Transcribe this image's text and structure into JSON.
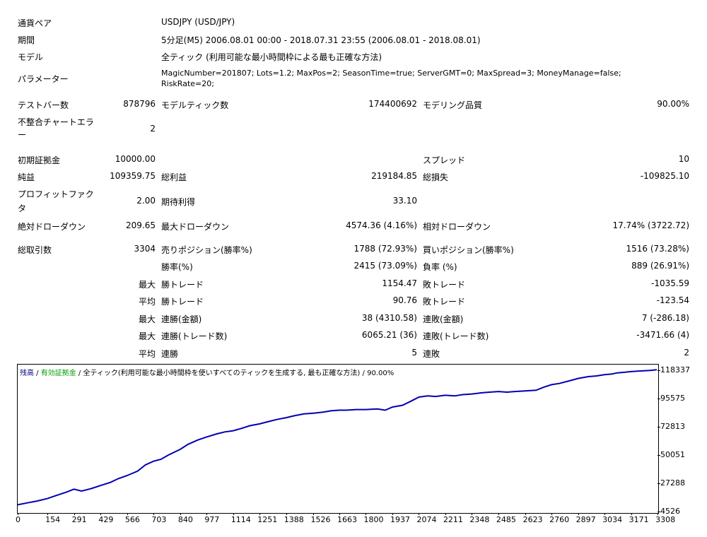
{
  "report": {
    "rows": [
      {
        "label": "通貨ペア",
        "value": "USDJPY (USD/JPY)"
      },
      {
        "label": "期間",
        "value": "5分足(M5) 2006.08.01 00:00 - 2018.07.31 23:55 (2006.08.01 - 2018.08.01)"
      },
      {
        "label": "モデル",
        "value": "全ティック (利用可能な最小時間枠による最も正確な方法)"
      },
      {
        "label": "パラメーター",
        "value_line1": "MagicNumber=201807; Lots=1.2; MaxPos=2; SeasonTime=true; ServerGMT=0; MaxSpread=3; MoneyManage=false;",
        "value_line2": "RiskRate=20;"
      }
    ],
    "bars": {
      "label": "テストバー数",
      "value": "878796"
    },
    "ticks": {
      "label": "モデルティック数",
      "value": "174400692"
    },
    "quality": {
      "label": "モデリング品質",
      "value": "90.00%"
    },
    "mismatch": {
      "label_line1": "不整合チャートエラ",
      "label_line2": "ー",
      "value": "2"
    },
    "deposit": {
      "label": "初期証拠金",
      "value": "10000.00"
    },
    "spread": {
      "label": "スプレッド",
      "value": "10"
    },
    "net_profit": {
      "label": "純益",
      "value": "109359.75"
    },
    "gross_profit": {
      "label": "総利益",
      "value": "219184.85"
    },
    "gross_loss": {
      "label": "総損失",
      "value": "-109825.10"
    },
    "profit_factor": {
      "label_line1": "プロフィットファク",
      "label_line2": "タ",
      "value": "2.00"
    },
    "expected_payoff": {
      "label": "期待利得",
      "value": "33.10"
    },
    "abs_dd": {
      "label": "絶対ドローダウン",
      "value": "209.65"
    },
    "max_dd": {
      "label": "最大ドローダウン",
      "value": "4574.36 (4.16%)"
    },
    "rel_dd": {
      "label": "相対ドローダウン",
      "value": "17.74% (3722.72)"
    },
    "total_trades": {
      "label": "総取引数",
      "value": "3304"
    },
    "short": {
      "label": "売りポジション(勝率%)",
      "value": "1788 (72.93%)"
    },
    "long": {
      "label": "買いポジション(勝率%)",
      "value": "1516 (73.28%)"
    },
    "win_rate": {
      "label": "勝率(%)",
      "value": "2415 (73.09%)"
    },
    "loss_rate": {
      "label": "負率 (%)",
      "value": "889 (26.91%)"
    },
    "max_win": {
      "prefix": "最大",
      "label": "勝トレード",
      "value": "1154.47"
    },
    "max_loss": {
      "label": "敗トレード",
      "value": "-1035.59"
    },
    "avg_win": {
      "prefix": "平均",
      "label": "勝トレード",
      "value": "90.76"
    },
    "avg_loss": {
      "label": "敗トレード",
      "value": "-123.54"
    },
    "max_cons_wins_amt": {
      "prefix": "最大",
      "label": "連勝(金額)",
      "value": "38 (4310.58)"
    },
    "max_cons_loss_amt": {
      "label": "連敗(金額)",
      "value": "7 (-286.18)"
    },
    "max_cons_wins_cnt": {
      "prefix": "最大",
      "label": "連勝(トレード数)",
      "value": "6065.21 (36)"
    },
    "max_cons_loss_cnt": {
      "label": "連敗(トレード数)",
      "value": "-3471.66 (4)"
    },
    "avg_cons_wins": {
      "prefix": "平均",
      "label": "連勝",
      "value": "5"
    },
    "avg_cons_loss": {
      "label": "連敗",
      "value": "2"
    }
  },
  "chart_data": {
    "type": "line",
    "header": {
      "series1": "残高",
      "sep1": " / ",
      "series2": "有効証拠金",
      "sep2": " / ",
      "model": "全ティック(利用可能な最小時間枠を使いすべてのティックを生成する, 最も正確な方法)",
      "sep3": " / ",
      "quality": "90.00%"
    },
    "colors": {
      "balance": "#0000b4",
      "equity": "#00a000",
      "header": "#000080",
      "grid": "#c0c0c0"
    },
    "xlim": [
      0,
      3304
    ],
    "ylim": [
      4526,
      121500
    ],
    "x_ticks": [
      0,
      154,
      291,
      429,
      566,
      703,
      840,
      977,
      1114,
      1251,
      1388,
      1526,
      1663,
      1800,
      1937,
      2074,
      2211,
      2348,
      2485,
      2623,
      2760,
      2897,
      3034,
      3171,
      3308
    ],
    "y_ticks": [
      4526,
      27288,
      50051,
      72813,
      95575,
      118337
    ],
    "series": [
      {
        "name": "残高",
        "x": [
          0,
          50,
          100,
          154,
          200,
          250,
          291,
          330,
          380,
          429,
          480,
          520,
          566,
          620,
          660,
          703,
          740,
          780,
          840,
          880,
          930,
          977,
          1030,
          1070,
          1114,
          1160,
          1200,
          1251,
          1300,
          1340,
          1388,
          1430,
          1480,
          1526,
          1580,
          1620,
          1663,
          1700,
          1750,
          1800,
          1860,
          1900,
          1937,
          1990,
          2030,
          2074,
          2120,
          2160,
          2211,
          2260,
          2300,
          2348,
          2400,
          2440,
          2485,
          2530,
          2570,
          2623,
          2680,
          2720,
          2760,
          2800,
          2850,
          2897,
          2950,
          2990,
          3034,
          3070,
          3100,
          3140,
          3171,
          3220,
          3270,
          3304
        ],
        "y": [
          10000,
          11500,
          13000,
          15000,
          17500,
          20000,
          22500,
          21000,
          23000,
          25500,
          28000,
          31000,
          33500,
          37000,
          42000,
          45000,
          46500,
          50000,
          54500,
          58500,
          62000,
          64500,
          67000,
          68500,
          69500,
          71500,
          73500,
          75000,
          77000,
          78500,
          80000,
          81500,
          83000,
          83500,
          84500,
          85500,
          86000,
          86000,
          86500,
          86500,
          87000,
          86000,
          88500,
          90000,
          93000,
          96500,
          97500,
          97000,
          98000,
          97500,
          98500,
          99000,
          100000,
          100500,
          101000,
          100500,
          101000,
          101500,
          102000,
          104500,
          106500,
          107500,
          109500,
          111500,
          113000,
          113500,
          114500,
          115000,
          116000,
          116500,
          117000,
          117500,
          118000,
          118500
        ]
      }
    ]
  }
}
